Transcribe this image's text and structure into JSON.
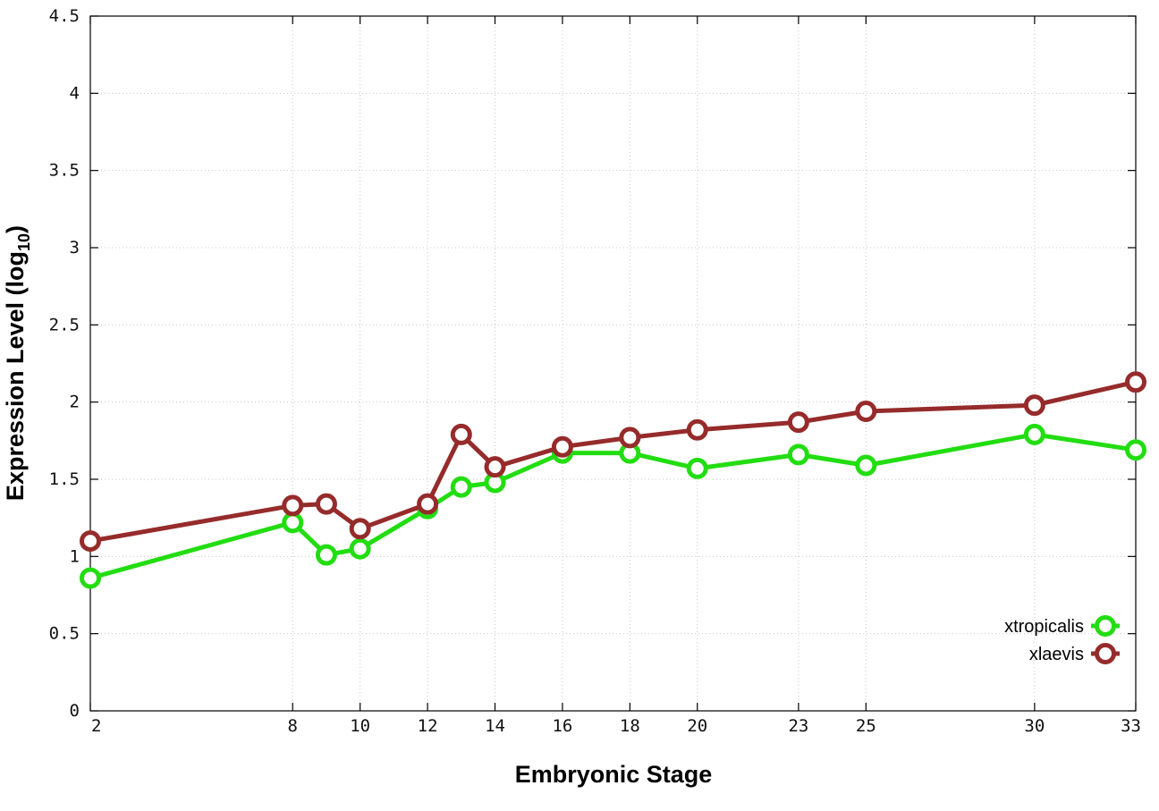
{
  "chart_data": {
    "type": "line",
    "xlabel": "Embryonic Stage",
    "ylabel_main": "Expression Level (log",
    "ylabel_sub": "10",
    "ylabel_end": ")",
    "x": [
      2,
      8,
      9,
      10,
      12,
      13,
      14,
      16,
      18,
      20,
      23,
      25,
      30,
      33
    ],
    "x_ticks": [
      2,
      8,
      10,
      12,
      14,
      16,
      18,
      20,
      23,
      25,
      30,
      33
    ],
    "xlim": [
      2,
      33
    ],
    "y_ticks": [
      "0",
      "0.5",
      "1",
      "1.5",
      "2",
      "2.5",
      "3",
      "3.5",
      "4",
      "4.5"
    ],
    "ylim": [
      0,
      4.5
    ],
    "grid": true,
    "legend_position": "bottom-right",
    "series": [
      {
        "name": "xtropicalis",
        "color": "#22dd11",
        "values": [
          0.86,
          1.22,
          1.01,
          1.05,
          1.31,
          1.45,
          1.48,
          1.67,
          1.67,
          1.57,
          1.66,
          1.59,
          1.79,
          1.69
        ]
      },
      {
        "name": "xlaevis",
        "color": "#962b2b",
        "values": [
          1.1,
          1.33,
          1.34,
          1.18,
          1.34,
          1.79,
          1.58,
          1.71,
          1.77,
          1.82,
          1.87,
          1.94,
          1.98,
          2.13
        ]
      }
    ]
  }
}
